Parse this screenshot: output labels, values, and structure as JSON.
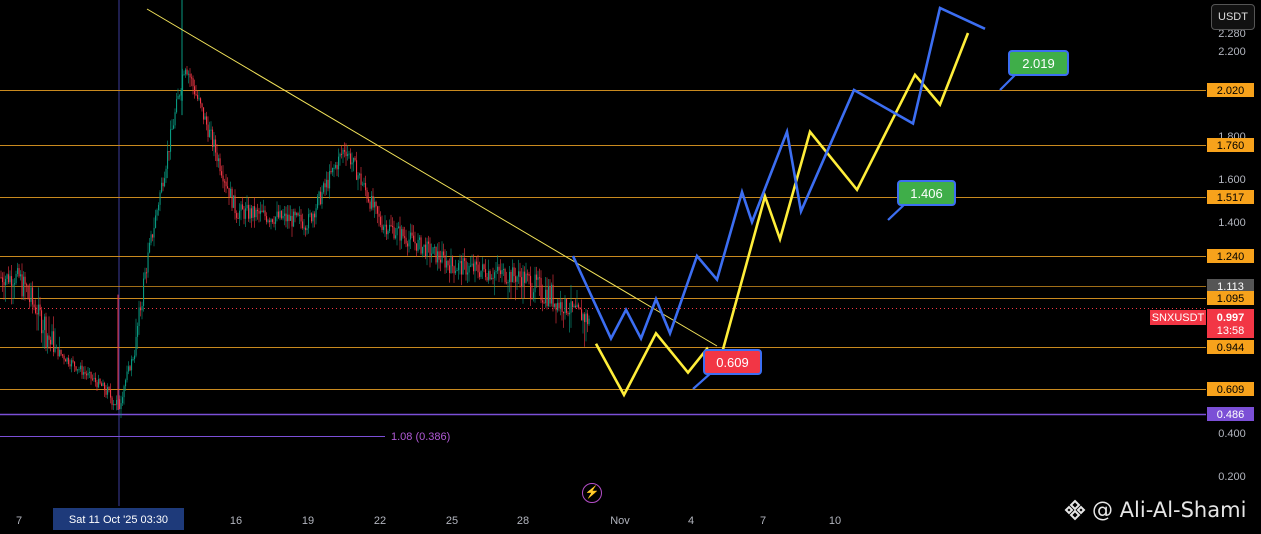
{
  "symbol": "SNXUSDT",
  "currency_label": "USDT",
  "watermark": "@ Ali-Al-Shami",
  "colors": {
    "background": "#000000",
    "axis_text": "#b2b5be",
    "level_line": "#c98a1f",
    "level_badge": "#f7a21b",
    "purple": "#7b4fd6",
    "fib_label": "#b15ad6",
    "projection_yellow": "#ffee3a",
    "projection_blue": "#3c6ef2",
    "trendline": "#f2e35a",
    "current_price": "#f23645",
    "up_candle": "#089981",
    "down_candle": "#f23645",
    "target_green": "#3fae49",
    "target_red": "#f23645"
  },
  "chart_data": {
    "type": "candlestick",
    "y_axis_ticks": [
      "0.200",
      "0.400",
      "1.240",
      "1.400",
      "1.600",
      "1.800",
      "2.200",
      "2.280"
    ],
    "x_axis_ticks": [
      "7",
      "16",
      "19",
      "22",
      "25",
      "28",
      "Nov",
      "4",
      "7",
      "10"
    ],
    "crosshair_x_label": "Sat 11 Oct '25   03:30",
    "price_levels": [
      "2.020",
      "1.760",
      "1.517",
      "1.240",
      "1.113",
      "1.095",
      "0.944",
      "0.609",
      "0.486"
    ],
    "current_price": {
      "value": "0.997",
      "countdown": "13:58"
    },
    "fib_annotation": "1.08 (0.386)",
    "projection_targets": [
      {
        "label": "0.609",
        "kind": "low"
      },
      {
        "label": "1.406",
        "kind": "high"
      },
      {
        "label": "2.019",
        "kind": "high"
      }
    ],
    "history_x": [
      "7",
      "11",
      "14",
      "16",
      "19",
      "21",
      "22",
      "25",
      "28",
      "30"
    ],
    "history_close": [
      1.15,
      0.52,
      2.15,
      1.45,
      1.4,
      1.75,
      1.4,
      1.2,
      1.15,
      0.997
    ],
    "projection_yellow_y": [
      0.95,
      0.58,
      0.97,
      0.74,
      0.93,
      0.78,
      1.52,
      1.32,
      1.82,
      1.55,
      2.09,
      1.95,
      2.28
    ],
    "projection_blue_y": [
      1.24,
      0.96,
      1.04,
      0.96,
      1.09,
      0.97,
      1.24,
      1.14,
      1.54,
      1.4,
      1.82,
      1.45,
      2.02,
      1.86,
      2.4,
      2.3
    ]
  }
}
